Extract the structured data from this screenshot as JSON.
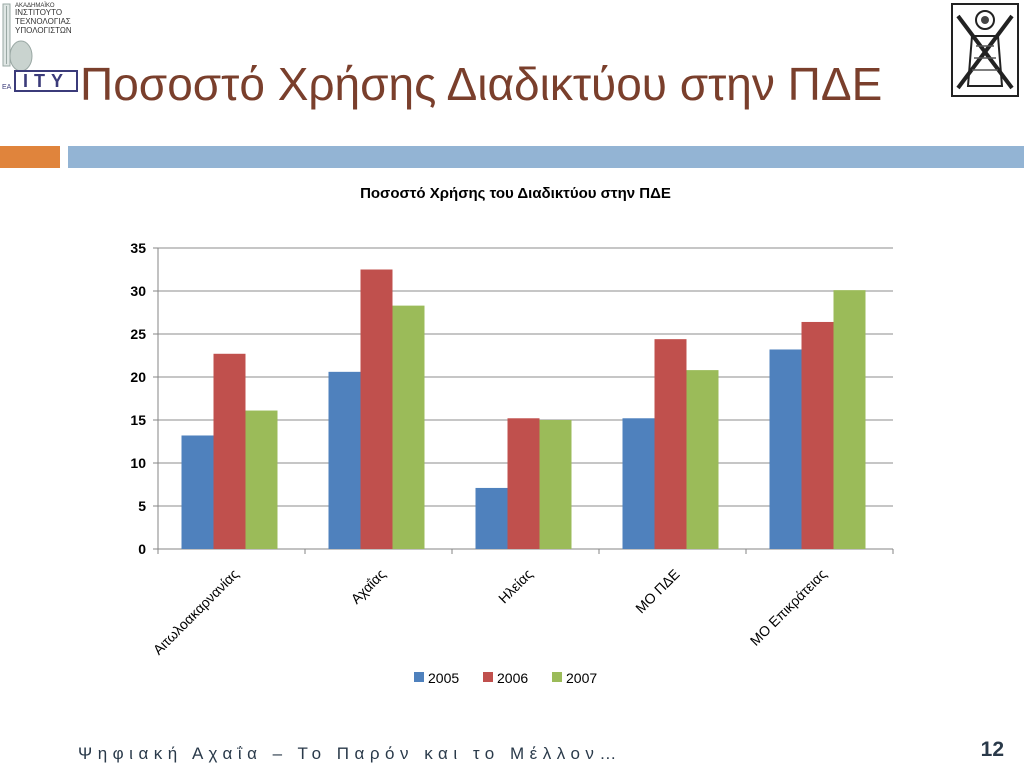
{
  "header": {
    "logo_lines": [
      "ΑΚΑΔΗΜΑΪΚΟ",
      "ΙΝΣΤΙΤΟΥΤΟ",
      "ΤΕΧΝΟΛΟΓΙΑΣ",
      "ΥΠΟΛΟΓΙΣΤΩΝ"
    ],
    "logo_mark": "ITY",
    "logo_small": "ΕΑ",
    "title": "Ποσοστό Χρήσης Διαδικτύου στην ΠΔΕ"
  },
  "colors": {
    "title": "#7a3f2c",
    "bar_orange": "#e0843c",
    "bar_blue": "#93b4d4"
  },
  "chart_data": {
    "type": "bar",
    "title": "Ποσοστό Χρήσης του Διαδικτύου στην ΠΔΕ",
    "xlabel": "",
    "ylabel": "",
    "ylim": [
      0,
      35
    ],
    "yticks": [
      0,
      5,
      10,
      15,
      20,
      25,
      30,
      35
    ],
    "grid": true,
    "legend_position": "bottom",
    "categories": [
      "Αιτωλοακαρνανίας",
      "Αχαΐας",
      "Ηλείας",
      "ΜΟ ΠΔΕ",
      "ΜΟ Επικράτειας"
    ],
    "series": [
      {
        "name": "2005",
        "color": "#4f81bd",
        "values": [
          13.2,
          20.6,
          7.1,
          15.2,
          23.2
        ]
      },
      {
        "name": "2006",
        "color": "#c0504d",
        "values": [
          22.7,
          32.5,
          15.2,
          24.4,
          26.4
        ]
      },
      {
        "name": "2007",
        "color": "#9bbb59",
        "values": [
          16.1,
          28.3,
          15.0,
          20.8,
          30.1
        ]
      }
    ]
  },
  "footer": {
    "text": "Ψηφιακή Αχαΐα – Το Παρόν και το Μέλλον…",
    "page_number": "12"
  }
}
